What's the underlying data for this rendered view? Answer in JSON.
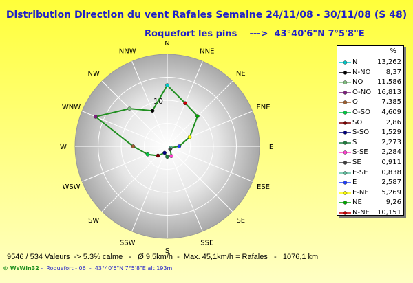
{
  "title": "Distribution Direction du vent Rafales  Semaine 24/11/08 - 30/11/08 (S 48)",
  "subtitle": "Roquefort les pins    --->  43°40'6\"N 7°5'8\"E",
  "chart_data": {
    "type": "radar",
    "unit": "%",
    "grid_label": "10",
    "max_value": 20,
    "directions": [
      "N",
      "NNE",
      "NE",
      "ENE",
      "E",
      "ESE",
      "SE",
      "SSE",
      "S",
      "SSW",
      "SW",
      "WSW",
      "W",
      "WNW",
      "NW",
      "NNW"
    ],
    "series": [
      {
        "name": "N",
        "value": "13,262",
        "direction": "N",
        "data_value": 13.262,
        "color": "#00c8c8"
      },
      {
        "name": "N-NO",
        "value": "8,37",
        "direction": "NNW",
        "data_value": 8.37,
        "color": "#000000"
      },
      {
        "name": "NO",
        "value": "11,586",
        "direction": "NW",
        "data_value": 11.586,
        "color": "#7fbf7f"
      },
      {
        "name": "O-NO",
        "value": "16,813",
        "direction": "WNW",
        "data_value": 16.813,
        "color": "#7f1f7f"
      },
      {
        "name": "O",
        "value": "7,385",
        "direction": "W",
        "data_value": 7.385,
        "color": "#9f5f2f"
      },
      {
        "name": "O-SO",
        "value": "4,609",
        "direction": "WSW",
        "data_value": 4.609,
        "color": "#00cc44"
      },
      {
        "name": "SO",
        "value": "2,86",
        "direction": "SW",
        "data_value": 2.86,
        "color": "#7f0000"
      },
      {
        "name": "S-SO",
        "value": "1,529",
        "direction": "SSW",
        "data_value": 1.529,
        "color": "#00007f"
      },
      {
        "name": "S",
        "value": "2,273",
        "direction": "S",
        "data_value": 2.273,
        "color": "#1f7f3f"
      },
      {
        "name": "S-SE",
        "value": "2,284",
        "direction": "SSE",
        "data_value": 2.284,
        "color": "#ff3fcf"
      },
      {
        "name": "SE",
        "value": "0,911",
        "direction": "SE",
        "data_value": 0.911,
        "color": "#3f3f3f"
      },
      {
        "name": "E-SE",
        "value": "0,838",
        "direction": "ESE",
        "data_value": 0.838,
        "color": "#5fbf9f"
      },
      {
        "name": "E",
        "value": "2,587",
        "direction": "E",
        "data_value": 2.587,
        "color": "#1f3fff"
      },
      {
        "name": "E-NE",
        "value": "5,269",
        "direction": "ENE",
        "data_value": 5.269,
        "color": "#ffff00"
      },
      {
        "name": "NE",
        "value": "9,26",
        "direction": "NE",
        "data_value": 9.26,
        "color": "#00aa00"
      },
      {
        "name": "N-NE",
        "value": "10,151",
        "direction": "NNE",
        "data_value": 10.151,
        "color": "#cc0000"
      }
    ],
    "line_color": "#1f8f1f"
  },
  "footer": {
    "stats": "9546 / 534 Valeurs  -> 5.3% calme   -   Ø 9,5km/h  -  Max. 45,1km/h = Rafales   -   1076,1 km",
    "logo": "© WsWin32",
    "station": " -  Roquefort - 06  -  43°40'6\"N 7°5'8\"E alt 193m"
  }
}
